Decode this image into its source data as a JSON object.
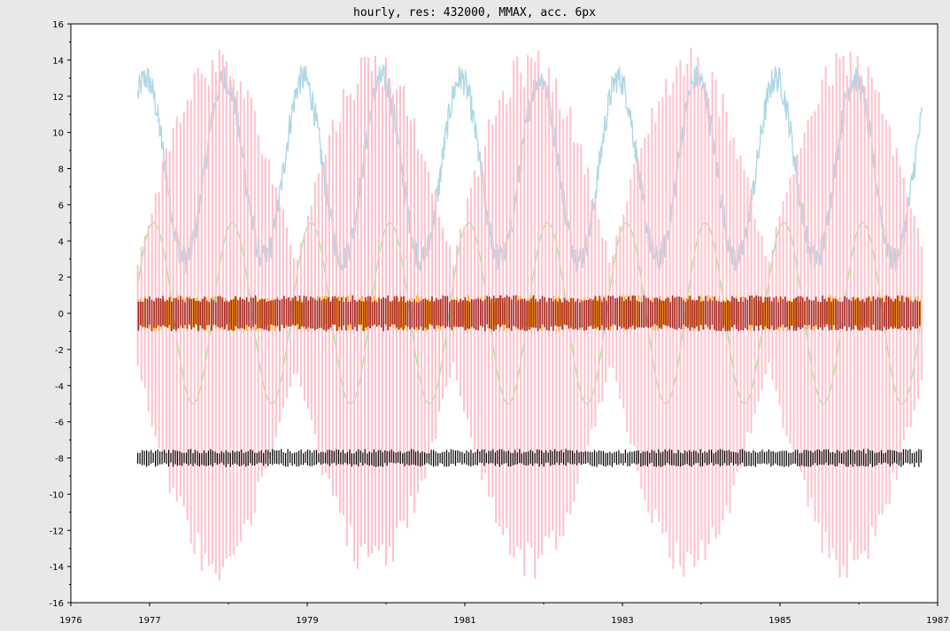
{
  "chart_data": {
    "type": "line",
    "title": "hourly, res: 432000, MMAX, acc. 6px",
    "xlabel": "",
    "ylabel": "",
    "xlim": [
      1976,
      1987
    ],
    "ylim": [
      -16,
      16
    ],
    "x_ticks": [
      "1976",
      "1977",
      "1979",
      "1981",
      "1983",
      "1985",
      "1987"
    ],
    "y_ticks": [
      16,
      14,
      12,
      10,
      8,
      6,
      4,
      2,
      0,
      -2,
      -4,
      -6,
      -8,
      -10,
      -12,
      -14,
      -16
    ],
    "grid": false,
    "legend": "none",
    "x_start": 1976.85,
    "x_end": 1986.8,
    "series": [
      {
        "style": "lightblue-band",
        "color": "#add8e6",
        "center": 8,
        "amplitude": 5,
        "period_years": 1,
        "phase_year": 1976.95,
        "noise": 0.8
      },
      {
        "style": "green-sine",
        "color": "#90ee90",
        "center": 0,
        "amplitude": 5,
        "period_years": 1,
        "phase_year": 1976.8
      },
      {
        "style": "pink-oscillation",
        "color": "#ffc0cb",
        "min": -14.8,
        "max": 14.8,
        "beat_period_years": 2,
        "spike_spacing_years": 0.045
      },
      {
        "style": "orange-band",
        "color": "#ffa500",
        "min": -1,
        "max": 1
      },
      {
        "style": "darkred-band",
        "color": "#a52a2a",
        "min": -1,
        "max": 1
      },
      {
        "style": "black-band",
        "color": "#000000",
        "min": -8.5,
        "max": -7.5
      }
    ]
  }
}
